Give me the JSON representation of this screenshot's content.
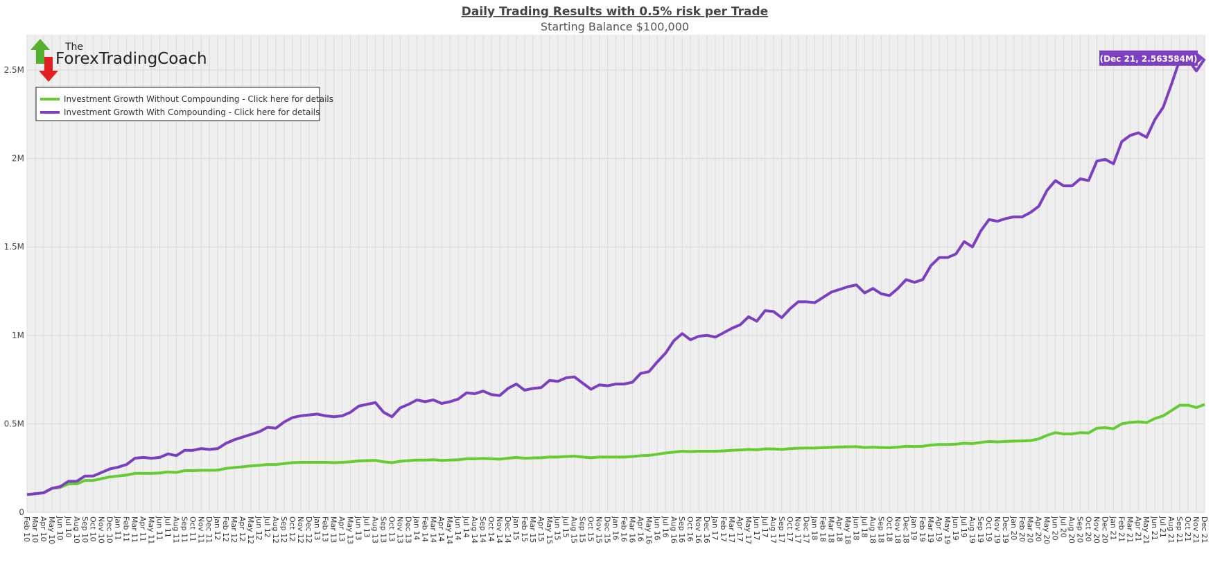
{
  "chart_data": {
    "type": "line",
    "title": "Daily Trading Results with 0.5% risk per Trade",
    "subtitle": "Starting Balance $100,000",
    "logo": {
      "line1": "The",
      "line2": "ForexTradingCoach"
    },
    "annotation": "(Dec 21, 2.563584M)",
    "categories": [
      "Feb 10",
      "Mar 10",
      "Apr 10",
      "May 10",
      "Jun 10",
      "Jul 10",
      "Aug 10",
      "Sep 10",
      "Oct 10",
      "Nov 10",
      "Dec 10",
      "Jan 11",
      "Feb 11",
      "Mar 11",
      "Apr 11",
      "May 11",
      "Jun 11",
      "Jul 11",
      "Aug 11",
      "Sep 11",
      "Oct 11",
      "Nov 11",
      "Dec 11",
      "Jan 12",
      "Feb 12",
      "Mar 12",
      "Apr 12",
      "May 12",
      "Jun 12",
      "Jul 12",
      "Aug 12",
      "Sep 12",
      "Oct 12",
      "Nov 12",
      "Dec 12",
      "Jan 13",
      "Feb 13",
      "Mar 13",
      "Apr 13",
      "May 13",
      "Jun 13",
      "Jul 13",
      "Aug 13",
      "Sep 13",
      "Oct 13",
      "Nov 13",
      "Dec 13",
      "Jan 14",
      "Feb 14",
      "Mar 14",
      "Apr 14",
      "May 14",
      "Jun 14",
      "Jul 14",
      "Aug 14",
      "Sep 14",
      "Oct 14",
      "Nov 14",
      "Dec 14",
      "Jan 15",
      "Feb 15",
      "Mar 15",
      "Apr 15",
      "May 15",
      "Jun 15",
      "Jul 15",
      "Aug 15",
      "Sep 15",
      "Oct 15",
      "Nov 15",
      "Dec 15",
      "Jan 16",
      "Feb 16",
      "Mar 16",
      "Apr 16",
      "May 16",
      "Jun 16",
      "Jul 16",
      "Aug 16",
      "Sep 16",
      "Oct 16",
      "Nov 16",
      "Dec 16",
      "Jan 17",
      "Feb 17",
      "Mar 17",
      "Apr 17",
      "May 17",
      "Jun 17",
      "Jul 17",
      "Aug 17",
      "Sep 17",
      "Oct 17",
      "Nov 17",
      "Dec 17",
      "Jan 18",
      "Feb 18",
      "Mar 18",
      "Apr 18",
      "May 18",
      "Jun 18",
      "Jul 18",
      "Aug 18",
      "Sep 18",
      "Oct 18",
      "Nov 18",
      "Dec 18",
      "Jan 19",
      "Feb 19",
      "Mar 19",
      "Apr 19",
      "May 19",
      "Jun 19",
      "Jul 19",
      "Aug 19",
      "Sep 19",
      "Oct 19",
      "Nov 19",
      "Dec 19",
      "Jan 20",
      "Feb 20",
      "Mar 20",
      "Apr 20",
      "May 20",
      "Jun 20",
      "Jul 20",
      "Aug 20",
      "Sep 20",
      "Oct 20",
      "Nov 20",
      "Dec 20",
      "Jan 21",
      "Feb 21",
      "Mar 21",
      "Apr 21",
      "May 21",
      "Jun 21",
      "Jul 21",
      "Aug 21",
      "Sep 21",
      "Oct 21",
      "Nov 21",
      "Dec 21"
    ],
    "series": [
      {
        "name": "Investment Growth Without Compounding - Click here for details",
        "color": "#66cc33",
        "values": [
          100000,
          105000,
          110000,
          135000,
          140000,
          160000,
          160000,
          180000,
          180000,
          190000,
          200000,
          205000,
          210000,
          220000,
          220000,
          220000,
          222000,
          228000,
          225000,
          235000,
          235000,
          237000,
          237000,
          238000,
          248000,
          253000,
          257000,
          262000,
          265000,
          270000,
          270000,
          275000,
          280000,
          282000,
          282000,
          282000,
          282000,
          280000,
          282000,
          285000,
          290000,
          292000,
          293000,
          285000,
          280000,
          288000,
          292000,
          295000,
          295000,
          297000,
          293000,
          295000,
          297000,
          302000,
          302000,
          304000,
          302000,
          300000,
          305000,
          310000,
          305000,
          307000,
          308000,
          312000,
          312000,
          315000,
          317000,
          312000,
          308000,
          312000,
          312000,
          312000,
          312000,
          315000,
          320000,
          322000,
          328000,
          335000,
          340000,
          345000,
          343000,
          345000,
          345000,
          345000,
          347000,
          350000,
          352000,
          355000,
          353000,
          358000,
          358000,
          355000,
          360000,
          362000,
          363000,
          363000,
          365000,
          367000,
          369000,
          370000,
          371000,
          366000,
          368000,
          366000,
          365000,
          368000,
          373000,
          372000,
          373000,
          380000,
          383000,
          383000,
          385000,
          390000,
          388000,
          395000,
          400000,
          398000,
          400000,
          402000,
          403000,
          405000,
          415000,
          435000,
          450000,
          443000,
          443000,
          450000,
          448000,
          475000,
          478000,
          472000,
          500000,
          508000,
          512000,
          507000,
          530000,
          545000,
          575000,
          605000,
          605000,
          592000,
          610000
        ]
      },
      {
        "name": "Investment Growth With Compounding - Click here for details",
        "color": "#7b3fbf",
        "values": [
          100000,
          105000,
          110000,
          135000,
          145000,
          175000,
          175000,
          205000,
          205000,
          225000,
          245000,
          255000,
          270000,
          305000,
          310000,
          305000,
          310000,
          330000,
          320000,
          350000,
          350000,
          360000,
          355000,
          360000,
          390000,
          410000,
          425000,
          440000,
          455000,
          480000,
          475000,
          510000,
          535000,
          545000,
          550000,
          555000,
          545000,
          540000,
          545000,
          565000,
          600000,
          610000,
          620000,
          565000,
          540000,
          590000,
          610000,
          635000,
          625000,
          635000,
          615000,
          625000,
          640000,
          675000,
          670000,
          685000,
          665000,
          660000,
          700000,
          725000,
          690000,
          700000,
          705000,
          745000,
          740000,
          760000,
          765000,
          730000,
          695000,
          720000,
          715000,
          725000,
          725000,
          735000,
          785000,
          795000,
          850000,
          900000,
          970000,
          1010000,
          975000,
          995000,
          1000000,
          990000,
          1015000,
          1040000,
          1060000,
          1105000,
          1080000,
          1140000,
          1135000,
          1100000,
          1150000,
          1190000,
          1190000,
          1185000,
          1215000,
          1245000,
          1260000,
          1275000,
          1285000,
          1240000,
          1265000,
          1235000,
          1225000,
          1265000,
          1315000,
          1300000,
          1315000,
          1395000,
          1440000,
          1440000,
          1460000,
          1530000,
          1500000,
          1590000,
          1655000,
          1645000,
          1660000,
          1670000,
          1670000,
          1695000,
          1730000,
          1820000,
          1875000,
          1845000,
          1845000,
          1885000,
          1875000,
          1985000,
          1995000,
          1970000,
          2095000,
          2130000,
          2145000,
          2120000,
          2220000,
          2290000,
          2420000,
          2560000,
          2560000,
          2495000,
          2563584
        ]
      }
    ],
    "ylim": [
      0,
      2700000
    ],
    "yticks": [
      0,
      {
        "value": 500000,
        "label": "0.5M"
      },
      {
        "value": 1000000,
        "label": "1M"
      },
      {
        "value": 1500000,
        "label": "1.5M"
      },
      {
        "value": 2000000,
        "label": "2M"
      },
      {
        "value": 2500000,
        "label": "2.5M"
      }
    ],
    "grid": true
  }
}
